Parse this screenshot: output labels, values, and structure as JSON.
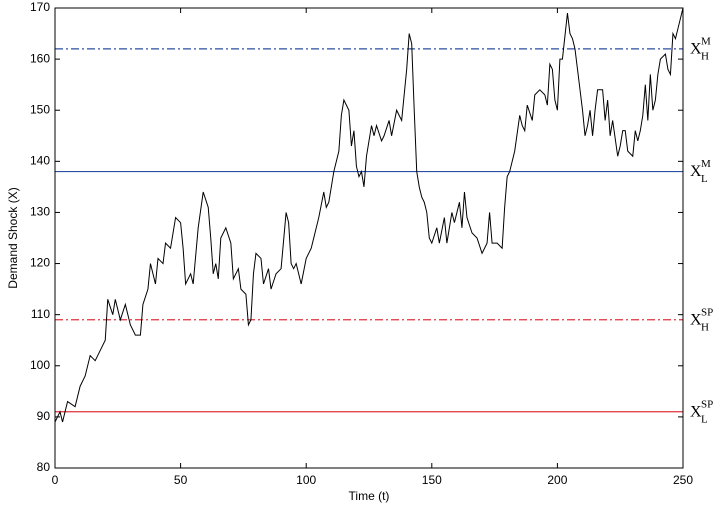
{
  "chart_data": {
    "type": "line",
    "xlabel": "Time (t)",
    "ylabel": "Demand Shock (X)",
    "xlim": [
      0,
      250
    ],
    "ylim": [
      80,
      170
    ],
    "xticks": [
      0,
      50,
      100,
      150,
      200,
      250
    ],
    "yticks": [
      80,
      90,
      100,
      110,
      120,
      130,
      140,
      150,
      160,
      170
    ],
    "series": [
      {
        "color": "#000000",
        "x": [
          0,
          2,
          3,
          5,
          8,
          10,
          12,
          14,
          16,
          18,
          20,
          21,
          23,
          24,
          26,
          28,
          30,
          32,
          34,
          35,
          37,
          38,
          40,
          41,
          43,
          44,
          46,
          48,
          50,
          51,
          52,
          54,
          55,
          57,
          59,
          61,
          62,
          63,
          64,
          65,
          66,
          68,
          70,
          71,
          73,
          74,
          76,
          77,
          78,
          79,
          80,
          82,
          83,
          85,
          86,
          88,
          90,
          92,
          93,
          94,
          95,
          96,
          98,
          100,
          102,
          103,
          105,
          107,
          108,
          109,
          111,
          113,
          114,
          115,
          117,
          118,
          119,
          120,
          121,
          122,
          123,
          124,
          126,
          127,
          128,
          130,
          131,
          133,
          134,
          136,
          138,
          140,
          141,
          142,
          143,
          144,
          145,
          146,
          147,
          148,
          149,
          150,
          152,
          153,
          155,
          156,
          158,
          159,
          161,
          162,
          163,
          164,
          166,
          168,
          170,
          171,
          172,
          173,
          174,
          176,
          178,
          179,
          180,
          181,
          183,
          185,
          186,
          187,
          188,
          190,
          191,
          193,
          195,
          196,
          197,
          198,
          199,
          200,
          201,
          202,
          204,
          205,
          206,
          207,
          208,
          210,
          211,
          212,
          213,
          214,
          215,
          216,
          218,
          219,
          220,
          221,
          222,
          224,
          225,
          226,
          227,
          228,
          230,
          231,
          232,
          233,
          234,
          235,
          236,
          237,
          238,
          239,
          240,
          241,
          243,
          244,
          245,
          246,
          247,
          248,
          250
        ],
        "values": [
          89,
          91,
          89,
          93,
          92,
          96,
          98,
          102,
          101,
          103,
          105,
          113,
          110,
          113,
          109,
          112,
          108,
          106,
          106,
          112,
          115,
          120,
          116,
          121,
          120,
          124,
          123,
          129,
          128,
          123,
          116,
          118,
          116,
          127,
          134,
          131,
          125,
          118,
          120,
          117,
          125,
          127,
          124,
          117,
          119,
          115,
          114,
          108,
          109,
          118,
          122,
          121,
          116,
          119,
          115,
          118,
          119,
          130,
          128,
          120,
          119,
          120,
          116,
          121,
          123,
          125,
          129,
          134,
          131,
          132,
          138,
          142,
          149,
          152,
          150,
          143,
          146,
          139,
          137,
          138,
          135,
          141,
          147,
          145,
          147,
          144,
          145,
          148,
          145,
          150,
          148,
          158,
          165,
          163,
          150,
          138,
          135,
          133,
          132,
          130,
          125,
          124,
          127,
          124,
          129,
          124,
          130,
          128,
          132,
          127,
          134,
          129,
          126,
          125,
          122,
          123,
          124,
          130,
          124,
          124,
          123,
          131,
          137,
          138,
          142,
          149,
          147,
          146,
          151,
          148,
          153,
          154,
          153,
          151,
          159,
          158,
          152,
          150,
          160,
          160,
          169,
          165,
          164,
          162,
          158,
          150,
          145,
          147,
          150,
          145,
          150,
          154,
          154,
          148,
          152,
          145,
          148,
          141,
          143,
          146,
          146,
          142,
          141,
          146,
          144,
          146,
          149,
          155,
          148,
          157,
          150,
          152,
          157,
          160,
          161,
          158,
          157,
          165,
          164,
          166,
          170
        ]
      }
    ],
    "reference_lines": [
      {
        "value": 162,
        "color": "#2b4fa3",
        "style": "dashdot",
        "label": {
          "base": "X",
          "sub": "H",
          "sup": "M"
        }
      },
      {
        "value": 138,
        "color": "#2b4fa3",
        "style": "solid",
        "label": {
          "base": "X",
          "sub": "L",
          "sup": "M"
        }
      },
      {
        "value": 109,
        "color": "#e0323c",
        "style": "dashdot",
        "label": {
          "base": "X",
          "sub": "H",
          "sup": "SP"
        }
      },
      {
        "value": 91,
        "color": "#e0323c",
        "style": "solid",
        "label": {
          "base": "X",
          "sub": "L",
          "sup": "SP"
        }
      }
    ]
  }
}
